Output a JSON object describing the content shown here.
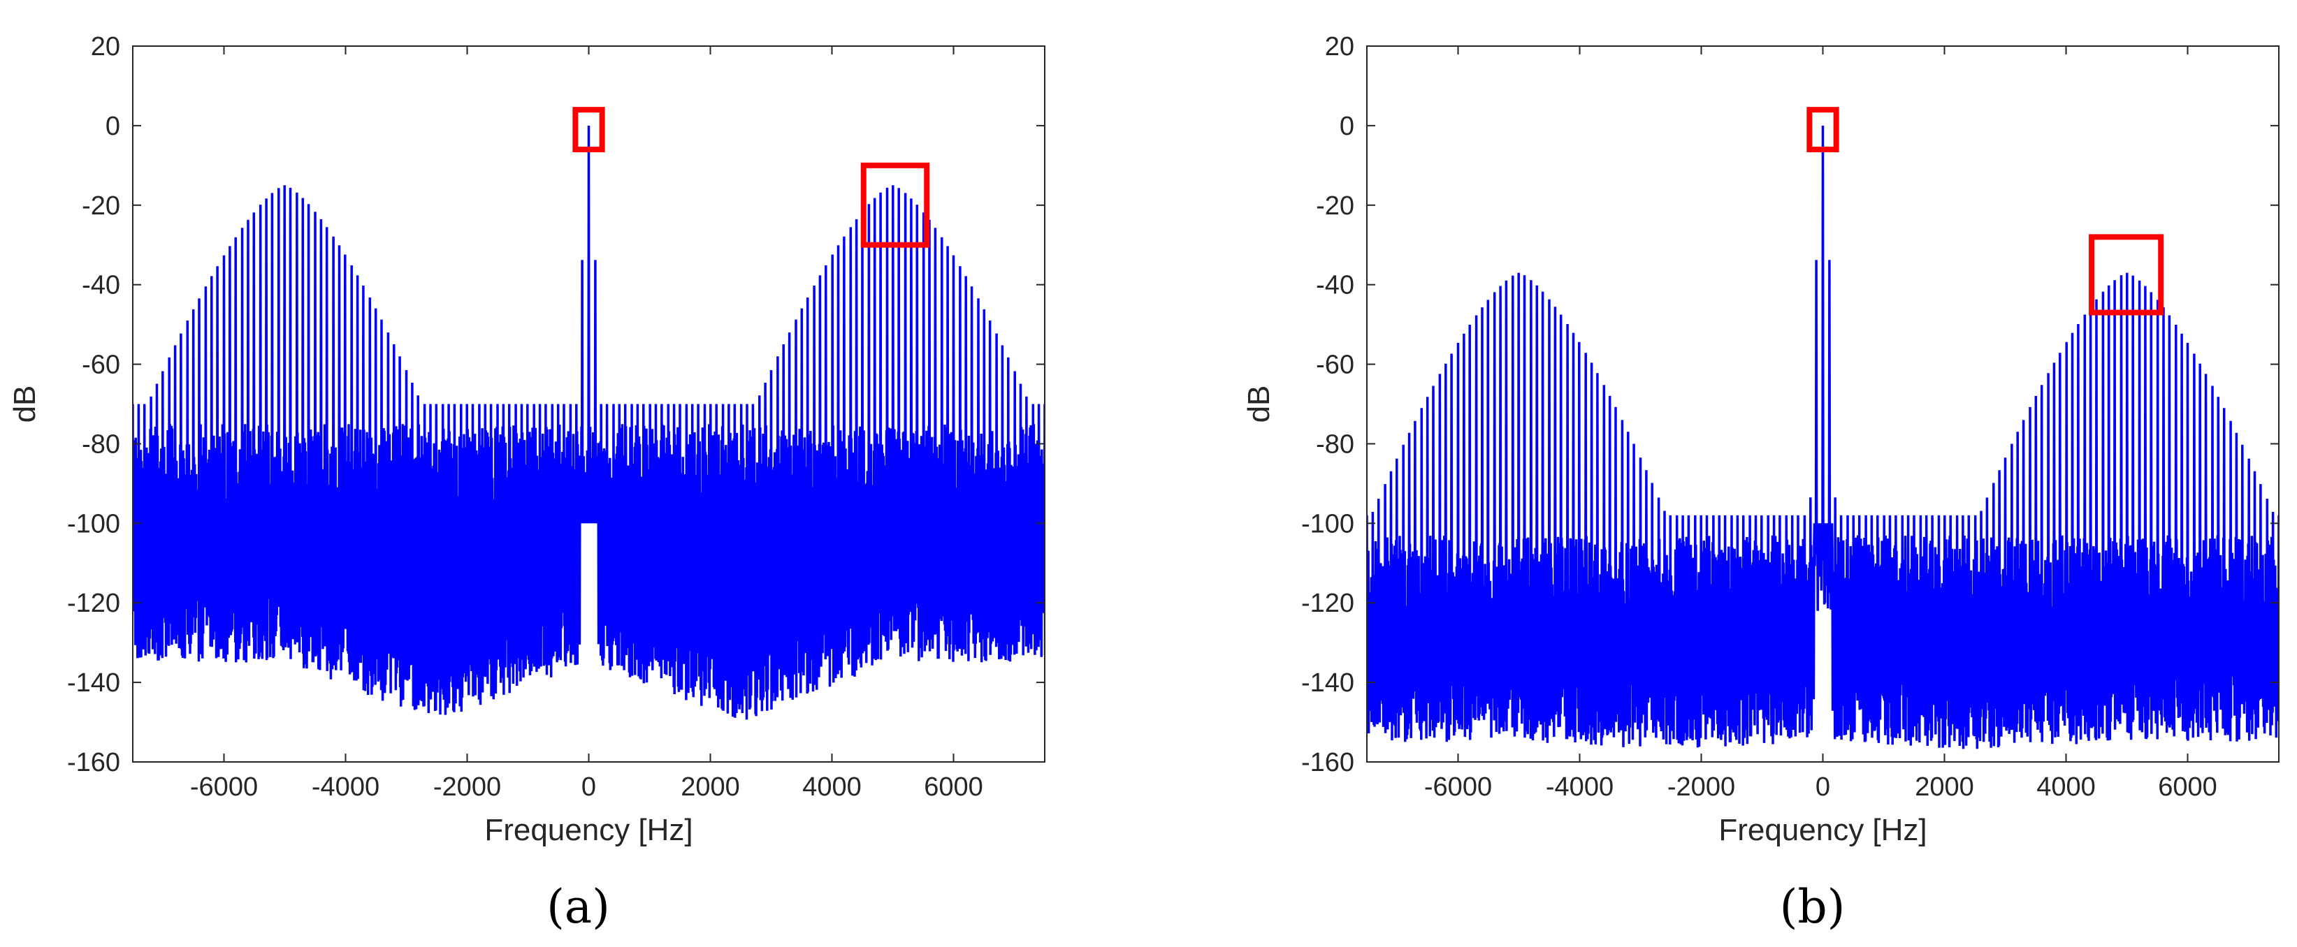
{
  "colors": {
    "series": "#0000ff",
    "highlight": "#ff0000",
    "axis": "#262626"
  },
  "chart_data": [
    {
      "type": "line",
      "caption": "(a)",
      "xlabel": "Frequency [Hz]",
      "ylabel": "dB",
      "xlim": [
        -7500,
        7500
      ],
      "ylim": [
        -160,
        20
      ],
      "xticks": [
        -6000,
        -4000,
        -2000,
        0,
        2000,
        4000,
        6000
      ],
      "yticks": [
        20,
        0,
        -20,
        -40,
        -60,
        -80,
        -100,
        -120,
        -140,
        -160
      ],
      "grid": false,
      "series": [
        {
          "peaks": [
            {
              "center": 0,
              "peak": 0,
              "halfwidth": 120
            },
            {
              "center": 5000,
              "peak": -15,
              "halfwidth": 2400
            },
            {
              "center": -5000,
              "peak": -15,
              "halfwidth": 2400
            }
          ],
          "floor_top": -70,
          "floor_bottom_edge": -135,
          "floor_bottom_center": -150,
          "harmonic_spacing": 100
        }
      ],
      "highlights": [
        {
          "x": [
            -220,
            220
          ],
          "y": [
            -6,
            4
          ]
        },
        {
          "x": [
            4520,
            5560
          ],
          "y": [
            -30,
            -10
          ]
        }
      ]
    },
    {
      "type": "line",
      "caption": "(b)",
      "xlabel": "Frequency [Hz]",
      "ylabel": "dB",
      "xlim": [
        -7500,
        7500
      ],
      "ylim": [
        -160,
        20
      ],
      "xticks": [
        -6000,
        -4000,
        -2000,
        0,
        2000,
        4000,
        6000
      ],
      "yticks": [
        20,
        0,
        -20,
        -40,
        -60,
        -80,
        -100,
        -120,
        -140,
        -160
      ],
      "grid": false,
      "series": [
        {
          "peaks": [
            {
              "center": 0,
              "peak": 0,
              "halfwidth": 120
            },
            {
              "center": 5000,
              "peak": -37,
              "halfwidth": 2400
            },
            {
              "center": -5000,
              "peak": -37,
              "halfwidth": 2400
            }
          ],
          "floor_top": -98,
          "floor_bottom_edge": -155,
          "floor_bottom_center": -157,
          "harmonic_spacing": 100
        }
      ],
      "highlights": [
        {
          "x": [
            -220,
            220
          ],
          "y": [
            -6,
            4
          ]
        },
        {
          "x": [
            4420,
            5560
          ],
          "y": [
            -47,
            -28
          ]
        }
      ]
    }
  ]
}
